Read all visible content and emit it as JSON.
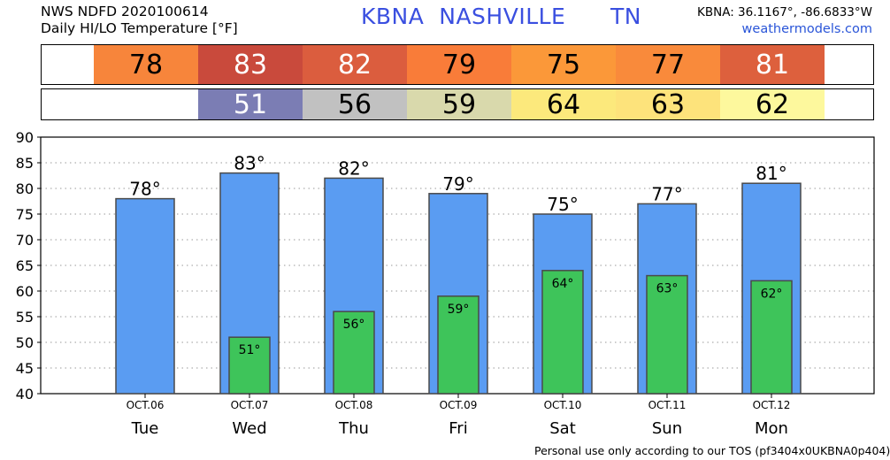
{
  "header": {
    "line1": "NWS NDFD 2020100614",
    "line2": "Daily HI/LO Temperature [°F]",
    "station": "KBNA  NASHVILLE      TN",
    "coords": "KBNA: 36.1167°, -86.6833°W",
    "site": "weathermodels.com"
  },
  "hi_strip": {
    "values": [
      "78",
      "83",
      "82",
      "79",
      "75",
      "77",
      "81"
    ],
    "colors": [
      "#f7853b",
      "#c94a3c",
      "#db5d3e",
      "#f97c39",
      "#fb9839",
      "#f98a3b",
      "#dd603d"
    ]
  },
  "lo_strip": {
    "values": [
      "",
      "51",
      "56",
      "59",
      "64",
      "63",
      "62"
    ],
    "colors": [
      "#ffffff",
      "#7b7db4",
      "#c1c1c1",
      "#d9d9ac",
      "#fce97c",
      "#fde37b",
      "#fdf89d"
    ]
  },
  "chart_data": {
    "type": "bar",
    "categories": [
      "OCT.06",
      "OCT.07",
      "OCT.08",
      "OCT.09",
      "OCT.10",
      "OCT.11",
      "OCT.12"
    ],
    "days": [
      "Tue",
      "Wed",
      "Thu",
      "Fri",
      "Sat",
      "Sun",
      "Mon"
    ],
    "series": [
      {
        "values": [
          78,
          83,
          82,
          79,
          75,
          77,
          81
        ],
        "color": "#5a9cf2"
      },
      {
        "values": [
          null,
          51,
          56,
          59,
          64,
          63,
          62
        ],
        "color": "#3ec45a"
      }
    ],
    "hi_labels": [
      "78°",
      "83°",
      "82°",
      "79°",
      "75°",
      "77°",
      "81°"
    ],
    "lo_labels": [
      "",
      "51°",
      "56°",
      "59°",
      "64°",
      "63°",
      "62°"
    ],
    "yticks": [
      40,
      45,
      50,
      55,
      60,
      65,
      70,
      75,
      80,
      85,
      90
    ],
    "ylim": [
      40,
      90
    ],
    "grid": true
  },
  "footer": "Personal use only according to our TOS (pf3404x0UKBNA0p404)"
}
